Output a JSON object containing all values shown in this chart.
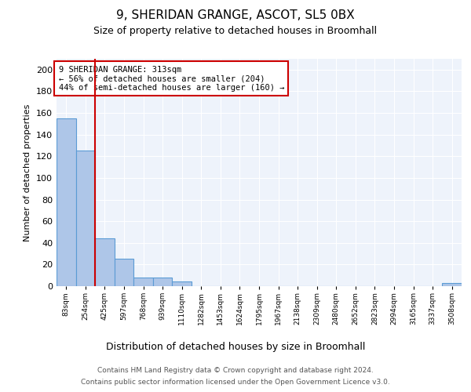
{
  "title1": "9, SHERIDAN GRANGE, ASCOT, SL5 0BX",
  "title2": "Size of property relative to detached houses in Broomhall",
  "xlabel": "Distribution of detached houses by size in Broomhall",
  "ylabel": "Number of detached properties",
  "bin_labels": [
    "83sqm",
    "254sqm",
    "425sqm",
    "597sqm",
    "768sqm",
    "939sqm",
    "1110sqm",
    "1282sqm",
    "1453sqm",
    "1624sqm",
    "1795sqm",
    "1967sqm",
    "2138sqm",
    "2309sqm",
    "2480sqm",
    "2652sqm",
    "2823sqm",
    "2994sqm",
    "3165sqm",
    "3337sqm",
    "3508sqm"
  ],
  "bar_heights": [
    155,
    125,
    44,
    25,
    8,
    8,
    4,
    0,
    0,
    0,
    0,
    0,
    0,
    0,
    0,
    0,
    0,
    0,
    0,
    0,
    3
  ],
  "bar_color": "#aec6e8",
  "bar_edge_color": "#5b9bd5",
  "bg_color": "#eef3fb",
  "grid_color": "#ffffff",
  "annotation_box_text": "9 SHERIDAN GRANGE: 313sqm\n← 56% of detached houses are smaller (204)\n44% of semi-detached houses are larger (160) →",
  "annotation_box_color": "#ffffff",
  "annotation_box_edge_color": "#cc0000",
  "vline_x": 1.5,
  "vline_color": "#cc0000",
  "ylim": [
    0,
    210
  ],
  "yticks": [
    0,
    20,
    40,
    60,
    80,
    100,
    120,
    140,
    160,
    180,
    200
  ],
  "footer1": "Contains HM Land Registry data © Crown copyright and database right 2024.",
  "footer2": "Contains public sector information licensed under the Open Government Licence v3.0."
}
